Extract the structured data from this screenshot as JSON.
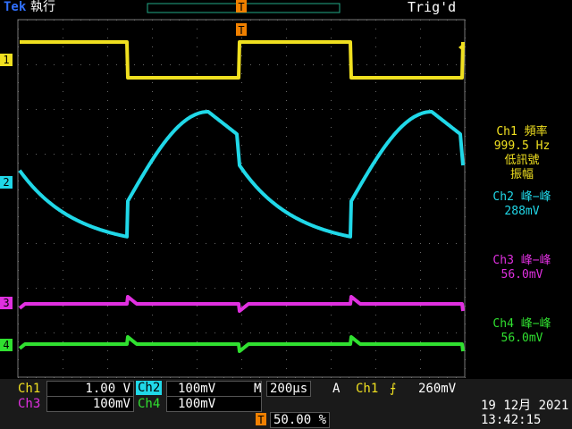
{
  "header": {
    "brand": "Tek",
    "status": "執行",
    "trigger_marker": "T",
    "trigger_state": "Trig'd"
  },
  "channel_markers": [
    "1",
    "2",
    "3",
    "4"
  ],
  "measurements": [
    {
      "label": "Ch1 頻率",
      "value": "999.5 Hz",
      "notes": [
        "低訊號",
        "振幅"
      ]
    },
    {
      "label": "Ch2 峰−峰",
      "value": "288mV"
    },
    {
      "label": "Ch3 峰−峰",
      "value": "56.0mV"
    },
    {
      "label": "Ch4 峰−峰",
      "value": "56.0mV"
    }
  ],
  "status_bar": {
    "ch1": {
      "name": "Ch1",
      "scale": "1.00 V"
    },
    "ch2": {
      "name": "Ch2",
      "scale": "100mV"
    },
    "ch3": {
      "name": "Ch3",
      "scale": "100mV"
    },
    "ch4": {
      "name": "Ch4",
      "scale": "100mV"
    },
    "timebase": {
      "label": "M",
      "value": "200µs"
    },
    "trigger": {
      "label": "A",
      "source": "Ch1",
      "level": "260mV"
    },
    "trigger_position": {
      "icon": "T",
      "value": "50.00 %"
    },
    "date": "19 12月 2021",
    "time": "13:42:15"
  }
}
